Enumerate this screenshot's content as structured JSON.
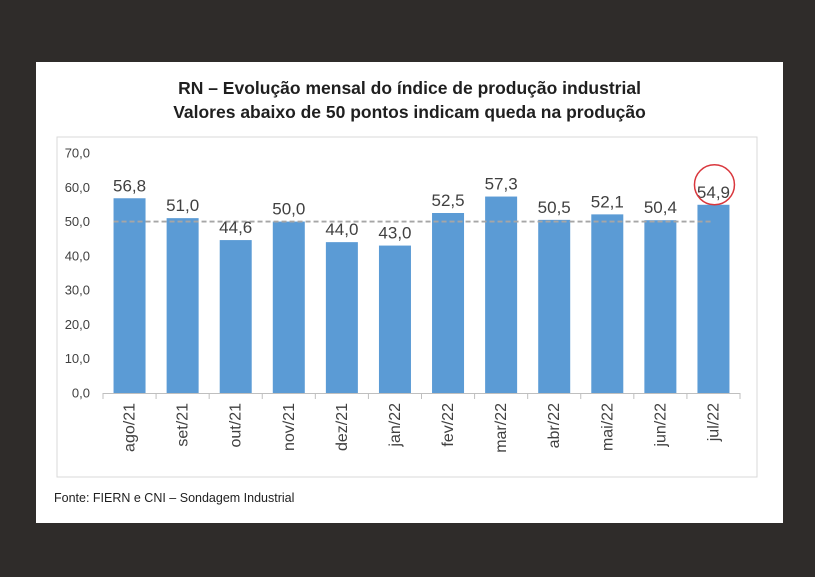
{
  "title_line1": "RN – Evolução mensal do índice de produção industrial",
  "title_line2": "Valores abaixo de 50 pontos indicam queda na produção",
  "source": "Fonte: FIERN e CNI – Sondagem Industrial",
  "chart_data": {
    "type": "bar",
    "categories": [
      "ago/21",
      "set/21",
      "out/21",
      "nov/21",
      "dez/21",
      "jan/22",
      "fev/22",
      "mar/22",
      "abr/22",
      "mai/22",
      "jun/22",
      "jul/22"
    ],
    "values": [
      56.8,
      51.0,
      44.6,
      50.0,
      44.0,
      43.0,
      52.5,
      57.3,
      50.5,
      52.1,
      50.4,
      54.9
    ],
    "value_labels": [
      "56,8",
      "51,0",
      "44,6",
      "50,0",
      "44,0",
      "43,0",
      "52,5",
      "57,3",
      "50,5",
      "52,1",
      "50,4",
      "54,9"
    ],
    "ylim": [
      0,
      70
    ],
    "yticks": [
      0,
      10,
      20,
      30,
      40,
      50,
      60,
      70
    ],
    "ytick_labels": [
      "0,0",
      "10,0",
      "20,0",
      "30,0",
      "40,0",
      "50,0",
      "60,0",
      "70,0"
    ],
    "reference_line": 50,
    "highlighted_category": "jul/22",
    "bar_color": "#5b9bd5",
    "reference_line_color": "#a6a6a6",
    "highlight_circle_color": "#d9373d",
    "grid": false
  }
}
